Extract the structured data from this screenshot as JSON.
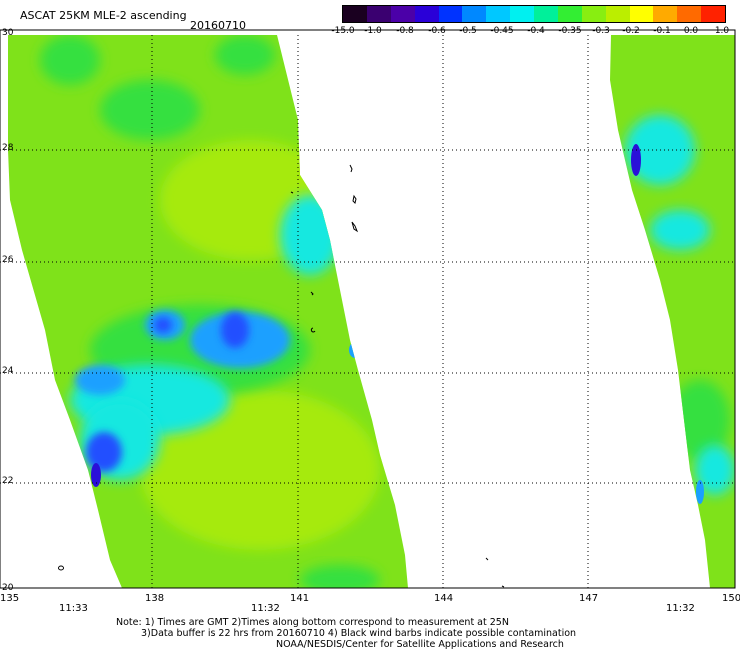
{
  "header": {
    "title": "ASCAT 25KM MLE-2 ascending",
    "date": "20160710"
  },
  "colorbar": {
    "labels": [
      "-15.0",
      "-1.0",
      "-0.8",
      "-0.6",
      "-0.5",
      "-0.45",
      "-0.4",
      "-0.35",
      "-0.3",
      "-0.2",
      "-0.1",
      "0.0",
      "1.0"
    ],
    "colors": [
      "#1a0020",
      "#3a0070",
      "#4b00a8",
      "#2a00d8",
      "#0033ff",
      "#0088ff",
      "#00c8ff",
      "#00f0f0",
      "#00f09a",
      "#33ee33",
      "#88ee11",
      "#bbee00",
      "#ffff00",
      "#ffaa00",
      "#ff6a00",
      "#ff2200"
    ]
  },
  "map": {
    "lon_labels": [
      "135",
      "138",
      "141",
      "144",
      "147",
      "150"
    ],
    "lat_labels": [
      "30",
      "28",
      "26",
      "24",
      "22",
      "20"
    ],
    "time_labels": [
      "11:33",
      "11:32",
      "11:32"
    ],
    "colors": {
      "swath_base": "#7fe21a",
      "swath_light": "#a6ea10",
      "green": "#34e040",
      "cyan": "#18e8e0",
      "sky": "#1aa0ff",
      "blue": "#2450ff",
      "deep_blue": "#2a10d8",
      "purple": "#5a18b0",
      "coast": "#000000"
    }
  },
  "notes": {
    "line1": "Note: 1) Times are GMT 2)Times along bottom correspond to measurement at 25N",
    "line2": "3)Data buffer is 22 hrs from 20160710 4) Black wind barbs indicate possible contamination",
    "line3": "NOAA/NESDIS/Center for Satellite Applications and Research"
  }
}
